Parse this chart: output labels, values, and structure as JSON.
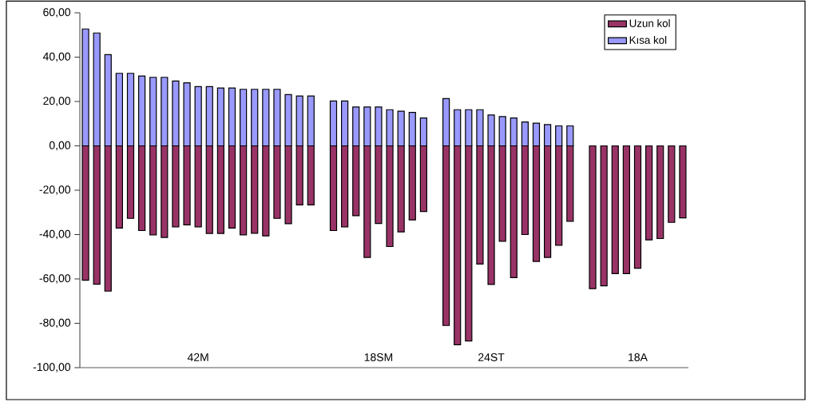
{
  "chart_data": {
    "type": "bar",
    "categories": [
      null,
      null,
      null,
      null,
      null,
      null,
      null,
      null,
      null,
      null,
      "42M",
      null,
      null,
      null,
      null,
      null,
      null,
      null,
      null,
      null,
      null,
      null,
      null,
      null,
      null,
      null,
      "18SM",
      null,
      null,
      null,
      null,
      null,
      null,
      null,
      null,
      null,
      "24ST",
      null,
      null,
      null,
      null,
      null,
      null,
      null,
      null,
      null,
      null,
      null,
      null,
      "18A",
      null,
      null,
      null,
      null
    ],
    "series": [
      {
        "name": "Kısa kol",
        "color": "#9999ff",
        "values": [
          52.7,
          50.9,
          41.1,
          32.7,
          32.7,
          31.5,
          30.9,
          30.9,
          29.2,
          28.4,
          26.7,
          26.7,
          26.1,
          26.1,
          25.5,
          25.5,
          25.5,
          25.5,
          23.1,
          22.5,
          22.5,
          null,
          20.2,
          20.2,
          17.5,
          17.5,
          17.5,
          16.3,
          15.6,
          15.1,
          12.6,
          null,
          21.3,
          16.3,
          16.3,
          16.3,
          13.9,
          13.2,
          12.6,
          10.8,
          10.2,
          9.6,
          9.0,
          9.0,
          null,
          null,
          null,
          null,
          null,
          null,
          null,
          null,
          null,
          null
        ]
      },
      {
        "name": "Uzun kol",
        "color": "#993366",
        "values": [
          -60.6,
          -62.4,
          -65.5,
          -37.1,
          -32.7,
          -38.2,
          -40.1,
          -41.3,
          -36.5,
          -35.6,
          -36.5,
          -39.5,
          -39.5,
          -37.1,
          -40.1,
          -39.4,
          -40.6,
          -32.7,
          -35.1,
          -26.6,
          -26.6,
          null,
          -38.2,
          -36.5,
          -31.5,
          -50.3,
          -35.0,
          -45.4,
          -38.8,
          -33.4,
          -29.6,
          null,
          -81.0,
          -89.7,
          -88.0,
          -53.3,
          -62.5,
          -43.0,
          -59.4,
          -40.0,
          -52.1,
          -50.3,
          -44.8,
          -34.0,
          null,
          -64.4,
          -63.1,
          -57.6,
          -57.6,
          -55.2,
          -42.4,
          -41.8,
          -34.5,
          -32.5
        ]
      }
    ],
    "ylim": [
      -100,
      60
    ],
    "yticks": [
      {
        "value": -100,
        "label": "-100,00"
      },
      {
        "value": -80,
        "label": "-80,00"
      },
      {
        "value": -60,
        "label": "-60,00"
      },
      {
        "value": -40,
        "label": "-40,00"
      },
      {
        "value": -20,
        "label": "-20,00"
      },
      {
        "value": 0,
        "label": "0,00"
      },
      {
        "value": 20,
        "label": "20,00"
      },
      {
        "value": 40,
        "label": "40,00"
      },
      {
        "value": 60,
        "label": "60,00"
      }
    ],
    "legend": "top right",
    "stacked": true
  }
}
